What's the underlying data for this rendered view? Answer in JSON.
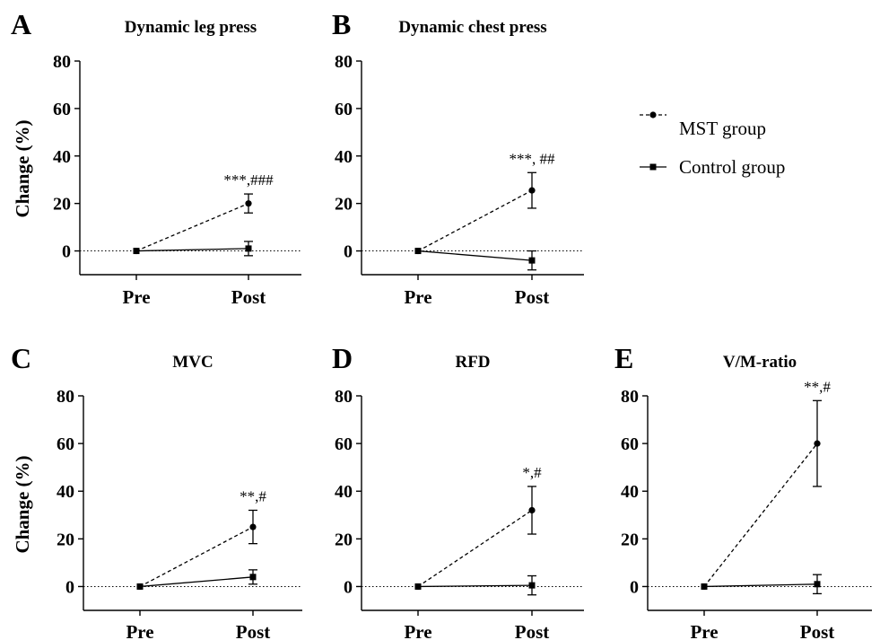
{
  "legend": {
    "mst": "MST group",
    "control": "Control group"
  },
  "chart_data": [
    {
      "type": "line",
      "panel": "A",
      "title": "Dynamic leg press",
      "ylabel": "Change (%)",
      "categories": [
        "Pre",
        "Post"
      ],
      "ylim": [
        -10,
        80
      ],
      "yticks": [
        0,
        20,
        40,
        60,
        80
      ],
      "series": [
        {
          "name": "MST group",
          "values": [
            0,
            20
          ],
          "err": [
            0,
            4
          ],
          "style": "dashed",
          "marker": "circle"
        },
        {
          "name": "Control group",
          "values": [
            0,
            1
          ],
          "err": [
            0,
            3
          ],
          "style": "solid",
          "marker": "square"
        }
      ],
      "annotation": {
        "text": "***,###",
        "category": "Post"
      }
    },
    {
      "type": "line",
      "panel": "B",
      "title": "Dynamic chest press",
      "ylabel": "",
      "categories": [
        "Pre",
        "Post"
      ],
      "ylim": [
        -10,
        80
      ],
      "yticks": [
        0,
        20,
        40,
        60,
        80
      ],
      "series": [
        {
          "name": "MST group",
          "values": [
            0,
            25.5
          ],
          "err": [
            0,
            7.5
          ],
          "style": "dashed",
          "marker": "circle"
        },
        {
          "name": "Control group",
          "values": [
            0,
            -4
          ],
          "err": [
            0,
            4
          ],
          "style": "solid",
          "marker": "square"
        }
      ],
      "annotation": {
        "text": "***, ##",
        "category": "Post"
      }
    },
    {
      "type": "line",
      "panel": "C",
      "title": "MVC",
      "ylabel": "Change (%)",
      "categories": [
        "Pre",
        "Post"
      ],
      "ylim": [
        -10,
        80
      ],
      "yticks": [
        0,
        20,
        40,
        60,
        80
      ],
      "series": [
        {
          "name": "MST group",
          "values": [
            0,
            25
          ],
          "err": [
            0,
            7
          ],
          "style": "dashed",
          "marker": "circle"
        },
        {
          "name": "Control group",
          "values": [
            0,
            4
          ],
          "err": [
            0,
            3
          ],
          "style": "solid",
          "marker": "square"
        }
      ],
      "annotation": {
        "text": "**,#",
        "category": "Post"
      }
    },
    {
      "type": "line",
      "panel": "D",
      "title": "RFD",
      "ylabel": "",
      "categories": [
        "Pre",
        "Post"
      ],
      "ylim": [
        -10,
        80
      ],
      "yticks": [
        0,
        20,
        40,
        60,
        80
      ],
      "series": [
        {
          "name": "MST group",
          "values": [
            0,
            32
          ],
          "err": [
            0,
            10
          ],
          "style": "dashed",
          "marker": "circle"
        },
        {
          "name": "Control group",
          "values": [
            0,
            0.5
          ],
          "err": [
            0,
            4
          ],
          "style": "solid",
          "marker": "square"
        }
      ],
      "annotation": {
        "text": "*,#",
        "category": "Post"
      }
    },
    {
      "type": "line",
      "panel": "E",
      "title": "V/M-ratio",
      "ylabel": "",
      "categories": [
        "Pre",
        "Post"
      ],
      "ylim": [
        -10,
        80
      ],
      "yticks": [
        0,
        20,
        40,
        60,
        80
      ],
      "series": [
        {
          "name": "MST group",
          "values": [
            0,
            60
          ],
          "err": [
            0,
            18
          ],
          "style": "dashed",
          "marker": "circle"
        },
        {
          "name": "Control group",
          "values": [
            0,
            1
          ],
          "err": [
            0,
            4
          ],
          "style": "solid",
          "marker": "square"
        }
      ],
      "annotation": {
        "text": "**,#",
        "category": "Post"
      }
    }
  ]
}
